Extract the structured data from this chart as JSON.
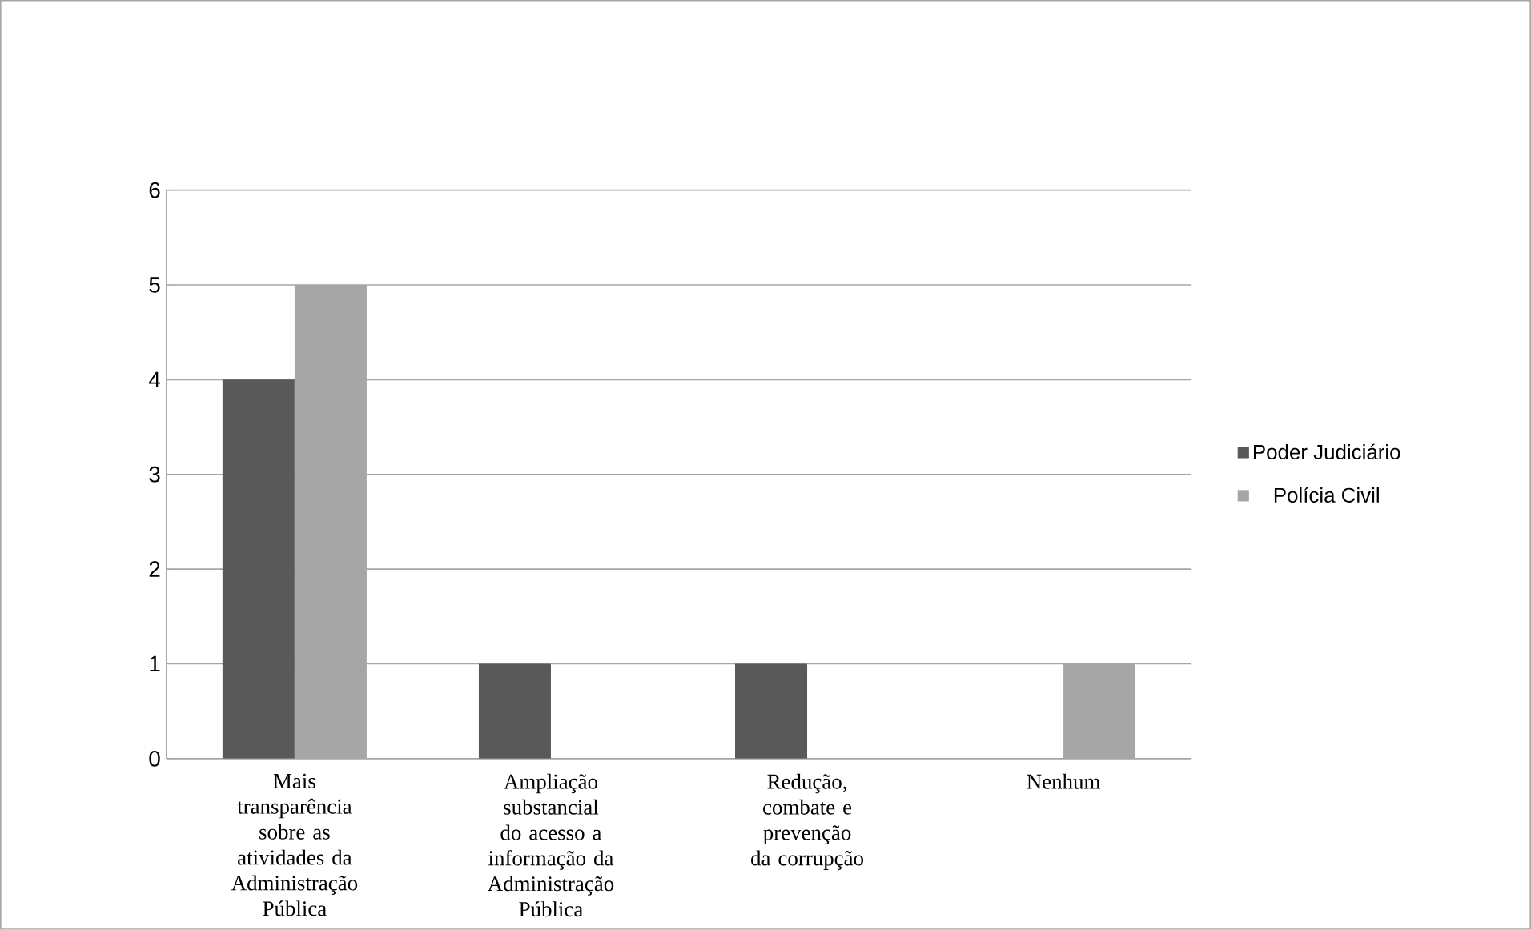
{
  "chart_data": {
    "type": "bar",
    "categories": [
      "Mais transparência sobre as atividades da Administração Pública",
      "Ampliação substancial do acesso a informação da Administração Pública",
      "Redução, combate e prevenção da corrupção",
      "Nenhum"
    ],
    "series": [
      {
        "name": "Poder Judiciário",
        "color": "#595959",
        "values": [
          4,
          1,
          1,
          0
        ]
      },
      {
        "name": "Polícia Civil",
        "color": "#a6a6a6",
        "values": [
          5,
          0,
          0,
          1
        ]
      }
    ],
    "ylim": [
      0,
      6
    ],
    "yticks": [
      0,
      1,
      2,
      3,
      4,
      5,
      6
    ],
    "grid": "y",
    "legend": "right"
  }
}
